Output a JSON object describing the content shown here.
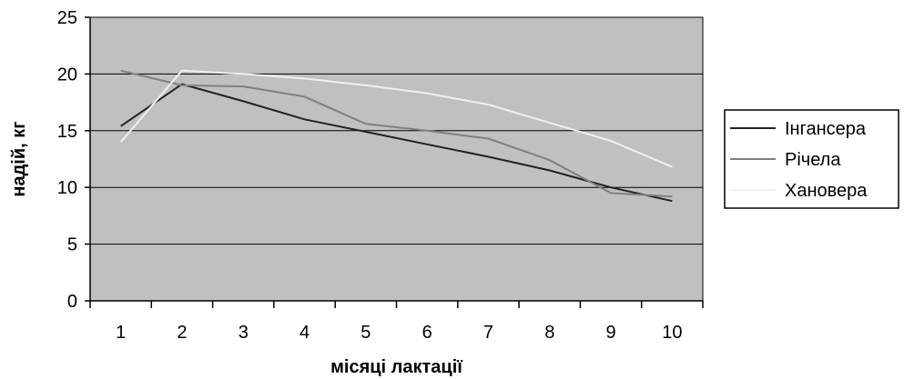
{
  "chart_data": {
    "type": "line",
    "title": "",
    "xlabel": "місяці лактації",
    "ylabel": "надій, кг",
    "categories": [
      "1",
      "2",
      "3",
      "4",
      "5",
      "6",
      "7",
      "8",
      "9",
      "10"
    ],
    "ylim": [
      0,
      25
    ],
    "yticks": [
      "0",
      "5",
      "10",
      "15",
      "20",
      "25"
    ],
    "grid": true,
    "legend_position": "right",
    "plot_background": "#c0c0c0",
    "series": [
      {
        "name": "Інгансера",
        "color": "#222222",
        "values": [
          15.4,
          19.1,
          17.6,
          16.0,
          14.9,
          13.8,
          12.7,
          11.5,
          10.0,
          8.8
        ]
      },
      {
        "name": "Річела",
        "color": "#808080",
        "values": [
          20.3,
          19.0,
          18.9,
          18.0,
          15.6,
          15.0,
          14.3,
          12.4,
          9.5,
          9.2
        ]
      },
      {
        "name": "Хановера",
        "color": "#f0f0f0",
        "values": [
          14.0,
          20.3,
          20.0,
          19.6,
          19.0,
          18.3,
          17.3,
          15.7,
          14.1,
          11.8
        ]
      }
    ]
  }
}
